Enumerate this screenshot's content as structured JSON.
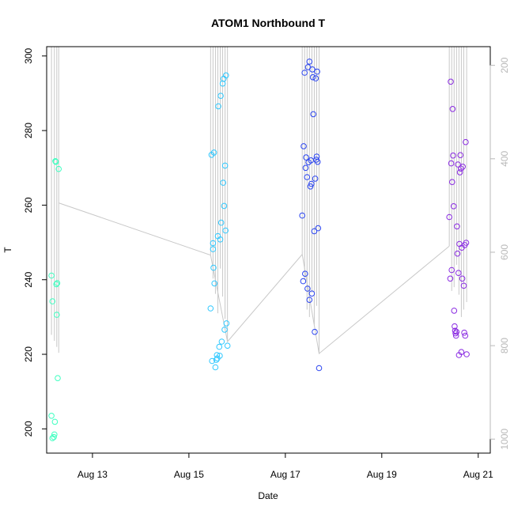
{
  "chart_data": {
    "type": "scatter",
    "title": "ATOM1 Northbound T",
    "xlabel": "Date",
    "ylabel": "T",
    "x_unit": "days in August",
    "xlim": [
      12.05,
      21.25
    ],
    "ylim": [
      193.5,
      302.5
    ],
    "x_ticks": [
      {
        "value": 13,
        "label": "Aug 13"
      },
      {
        "value": 15,
        "label": "Aug 15"
      },
      {
        "value": 17,
        "label": "Aug 17"
      },
      {
        "value": 19,
        "label": "Aug 19"
      },
      {
        "value": 21,
        "label": "Aug 21"
      }
    ],
    "y_ticks": [
      200,
      220,
      240,
      260,
      280,
      300
    ],
    "right_axis": {
      "ticks": [
        200,
        400,
        600,
        800,
        1000
      ],
      "ylim": [
        1030,
        160
      ],
      "color": "#b8b8b8"
    },
    "grid": false,
    "colors": {
      "group1": "#3effc0",
      "group2": "#2fc8ff",
      "group3": "#2a44f0",
      "group4": "#8a2be2",
      "line": "#c8c8c8"
    },
    "series": [
      {
        "group": "group1",
        "x": [
          12.15,
          12.15,
          12.17,
          12.17,
          12.2,
          12.21,
          12.22,
          12.23,
          12.24,
          12.25,
          12.26,
          12.27,
          12.28,
          12.3
        ],
        "y": [
          203.5,
          241.1,
          234.2,
          197.5,
          197.8,
          198.5,
          201.9,
          271.8,
          271.6,
          238.8,
          230.6,
          239.1,
          213.6,
          269.7
        ]
      },
      {
        "group": "group2",
        "x": [
          15.45,
          15.47,
          15.48,
          15.5,
          15.5,
          15.51,
          15.52,
          15.53,
          15.55,
          15.57,
          15.58,
          15.59,
          15.6,
          15.61,
          15.63,
          15.64,
          15.65,
          15.66,
          15.67,
          15.68,
          15.7,
          15.71,
          15.72,
          15.73,
          15.74,
          15.75,
          15.76,
          15.77,
          15.78,
          15.8
        ],
        "y": [
          232.3,
          273.5,
          218.2,
          249.8,
          248.2,
          243.2,
          274.1,
          239.0,
          216.5,
          218.5,
          219.8,
          218.9,
          251.7,
          286.5,
          222.0,
          219.6,
          250.8,
          289.3,
          255.3,
          223.4,
          292.6,
          266.0,
          293.9,
          259.8,
          226.6,
          270.6,
          253.2,
          294.8,
          228.3,
          222.3
        ]
      },
      {
        "group": "group3",
        "x": [
          17.35,
          17.37,
          17.38,
          17.4,
          17.41,
          17.42,
          17.43,
          17.45,
          17.46,
          17.47,
          17.48,
          17.5,
          17.5,
          17.52,
          17.53,
          17.54,
          17.55,
          17.56,
          17.57,
          17.58,
          17.6,
          17.61,
          17.62,
          17.63,
          17.64,
          17.65,
          17.66,
          17.67,
          17.68,
          17.7
        ],
        "y": [
          257.2,
          239.6,
          275.8,
          295.5,
          241.6,
          270.0,
          272.8,
          267.5,
          237.6,
          297.0,
          271.5,
          298.5,
          234.6,
          265.0,
          272.0,
          265.7,
          236.3,
          296.4,
          294.3,
          284.4,
          253.0,
          226.0,
          267.1,
          294.0,
          272.2,
          273.0,
          295.8,
          271.6,
          253.8,
          216.3
        ]
      },
      {
        "group": "group4",
        "x": [
          20.4,
          20.42,
          20.43,
          20.44,
          20.45,
          20.46,
          20.47,
          20.48,
          20.49,
          20.5,
          20.51,
          20.52,
          20.53,
          20.54,
          20.55,
          20.56,
          20.57,
          20.58,
          20.59,
          20.6,
          20.61,
          20.62,
          20.63,
          20.64,
          20.65,
          20.66,
          20.67,
          20.68,
          20.7,
          20.71,
          20.72,
          20.73,
          20.74,
          20.75,
          20.76
        ],
        "y": [
          256.8,
          240.3,
          293.1,
          271.2,
          242.6,
          266.2,
          285.8,
          273.3,
          259.7,
          231.7,
          227.5,
          226.3,
          225.6,
          225.0,
          226.0,
          254.3,
          247.0,
          270.9,
          241.8,
          219.8,
          249.6,
          268.8,
          273.4,
          269.8,
          220.6,
          248.6,
          240.3,
          270.3,
          238.4,
          225.8,
          249.3,
          225.0,
          276.9,
          249.9,
          220.0
        ]
      }
    ],
    "trajectory_line": {
      "x": [
        12.3,
        15.45,
        15.8,
        17.35,
        17.7,
        20.4
      ],
      "y": [
        260.6,
        246.6,
        223.4,
        246.8,
        220.2,
        249.0
      ]
    },
    "vertical_traces": [
      {
        "x": 12.15,
        "top": 302.5,
        "bottom": 225.2
      },
      {
        "x": 12.21,
        "top": 302.5,
        "bottom": 223.6
      },
      {
        "x": 12.26,
        "top": 302.5,
        "bottom": 222.0
      },
      {
        "x": 12.3,
        "top": 302.5,
        "bottom": 220.4
      },
      {
        "x": 15.45,
        "top": 302.5,
        "bottom": 246.6
      },
      {
        "x": 15.5,
        "top": 302.5,
        "bottom": 240.3
      },
      {
        "x": 15.55,
        "top": 302.5,
        "bottom": 236.2
      },
      {
        "x": 15.6,
        "top": 302.5,
        "bottom": 231.0
      },
      {
        "x": 15.65,
        "top": 302.5,
        "bottom": 243.0
      },
      {
        "x": 15.7,
        "top": 302.5,
        "bottom": 235.5
      },
      {
        "x": 15.75,
        "top": 302.5,
        "bottom": 229.5
      },
      {
        "x": 15.8,
        "top": 302.5,
        "bottom": 223.4
      },
      {
        "x": 17.35,
        "top": 302.5,
        "bottom": 246.8
      },
      {
        "x": 17.4,
        "top": 302.5,
        "bottom": 240.0
      },
      {
        "x": 17.45,
        "top": 302.5,
        "bottom": 232.0
      },
      {
        "x": 17.5,
        "top": 302.5,
        "bottom": 230.0
      },
      {
        "x": 17.55,
        "top": 302.5,
        "bottom": 236.5
      },
      {
        "x": 17.6,
        "top": 302.5,
        "bottom": 228.0
      },
      {
        "x": 17.65,
        "top": 302.5,
        "bottom": 233.0
      },
      {
        "x": 17.7,
        "top": 302.5,
        "bottom": 220.2
      },
      {
        "x": 20.4,
        "top": 302.5,
        "bottom": 249.0
      },
      {
        "x": 20.45,
        "top": 302.5,
        "bottom": 237.0
      },
      {
        "x": 20.5,
        "top": 302.5,
        "bottom": 238.0
      },
      {
        "x": 20.55,
        "top": 302.5,
        "bottom": 244.0
      },
      {
        "x": 20.6,
        "top": 302.5,
        "bottom": 236.0
      },
      {
        "x": 20.65,
        "top": 302.5,
        "bottom": 230.0
      },
      {
        "x": 20.7,
        "top": 302.5,
        "bottom": 232.0
      },
      {
        "x": 20.76,
        "top": 302.5,
        "bottom": 234.0
      }
    ]
  }
}
